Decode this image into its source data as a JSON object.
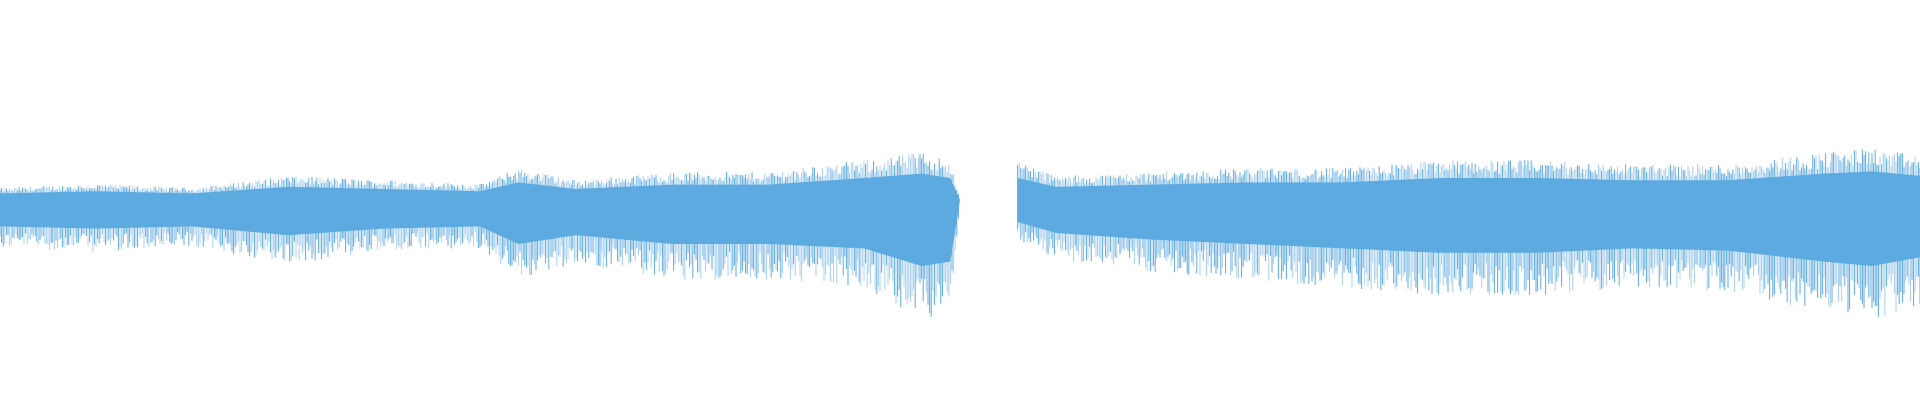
{
  "waveform": {
    "color": "#5daae0",
    "light_color": "#a8d0ef",
    "background": "#ffffff",
    "segments": [
      {
        "name": "segment-1",
        "start_fraction": 0.0,
        "end_fraction": 0.5,
        "envelope": [
          [
            0.0,
            0.47,
            0.62
          ],
          [
            0.05,
            0.46,
            0.63
          ],
          [
            0.1,
            0.47,
            0.62
          ],
          [
            0.15,
            0.44,
            0.66
          ],
          [
            0.2,
            0.45,
            0.63
          ],
          [
            0.25,
            0.46,
            0.62
          ],
          [
            0.27,
            0.42,
            0.7
          ],
          [
            0.3,
            0.45,
            0.66
          ],
          [
            0.35,
            0.43,
            0.7
          ],
          [
            0.4,
            0.43,
            0.7
          ],
          [
            0.45,
            0.4,
            0.72
          ],
          [
            0.48,
            0.38,
            0.8
          ],
          [
            0.495,
            0.4,
            0.78
          ],
          [
            0.5,
            0.5,
            0.5
          ]
        ]
      },
      {
        "name": "segment-2",
        "start_fraction": 0.53,
        "end_fraction": 1.0,
        "envelope": [
          [
            0.53,
            0.4,
            0.6
          ],
          [
            0.55,
            0.44,
            0.65
          ],
          [
            0.6,
            0.43,
            0.68
          ],
          [
            0.65,
            0.42,
            0.7
          ],
          [
            0.7,
            0.42,
            0.72
          ],
          [
            0.75,
            0.4,
            0.74
          ],
          [
            0.8,
            0.4,
            0.74
          ],
          [
            0.85,
            0.41,
            0.72
          ],
          [
            0.9,
            0.41,
            0.73
          ],
          [
            0.95,
            0.38,
            0.78
          ],
          [
            0.975,
            0.37,
            0.8
          ],
          [
            1.0,
            0.39,
            0.76
          ]
        ]
      }
    ]
  }
}
